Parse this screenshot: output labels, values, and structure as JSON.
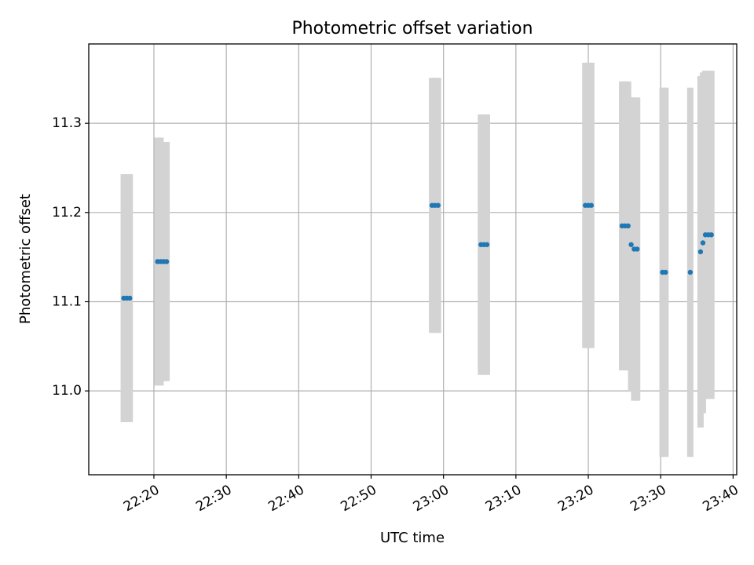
{
  "chart_data": {
    "type": "scatter",
    "title": "Photometric offset variation",
    "xlabel": "UTC time",
    "ylabel": "Photometric offset",
    "grid": true,
    "legend": "none",
    "xlim": [
      "22:11:00",
      "23:40:30"
    ],
    "ylim": [
      10.906,
      11.389
    ],
    "x_ticks": [
      "22:20",
      "22:30",
      "22:40",
      "22:50",
      "23:00",
      "23:10",
      "23:20",
      "23:30",
      "23:40"
    ],
    "y_ticks": [
      "11.0",
      "11.1",
      "11.2",
      "11.3"
    ],
    "y_tick_values": [
      11.0,
      11.1,
      11.2,
      11.3
    ],
    "colors": {
      "point": "#1f77b4",
      "errorbar": "#d3d3d3",
      "grid": "#b0b0b0"
    },
    "points": [
      {
        "time": "22:15:50",
        "value": 11.104,
        "error": 0.139
      },
      {
        "time": "22:16:15",
        "value": 11.104,
        "error": 0.139
      },
      {
        "time": "22:16:40",
        "value": 11.104,
        "error": 0.139
      },
      {
        "time": "22:20:30",
        "value": 11.145,
        "error": 0.139
      },
      {
        "time": "22:20:55",
        "value": 11.145,
        "error": 0.139
      },
      {
        "time": "22:21:20",
        "value": 11.145,
        "error": 0.134
      },
      {
        "time": "22:21:45",
        "value": 11.145,
        "error": 0.134
      },
      {
        "time": "22:58:25",
        "value": 11.208,
        "error": 0.143
      },
      {
        "time": "22:58:50",
        "value": 11.208,
        "error": 0.143
      },
      {
        "time": "22:59:15",
        "value": 11.208,
        "error": 0.143
      },
      {
        "time": "23:05:10",
        "value": 11.164,
        "error": 0.146
      },
      {
        "time": "23:05:35",
        "value": 11.164,
        "error": 0.146
      },
      {
        "time": "23:06:00",
        "value": 11.164,
        "error": 0.146
      },
      {
        "time": "23:19:35",
        "value": 11.208,
        "error": 0.16
      },
      {
        "time": "23:20:00",
        "value": 11.208,
        "error": 0.16
      },
      {
        "time": "23:20:25",
        "value": 11.208,
        "error": 0.16
      },
      {
        "time": "23:24:40",
        "value": 11.185,
        "error": 0.162
      },
      {
        "time": "23:25:05",
        "value": 11.185,
        "error": 0.162
      },
      {
        "time": "23:25:30",
        "value": 11.185,
        "error": 0.162
      },
      {
        "time": "23:25:55",
        "value": 11.164,
        "error": 0.165
      },
      {
        "time": "23:26:20",
        "value": 11.159,
        "error": 0.17
      },
      {
        "time": "23:26:45",
        "value": 11.159,
        "error": 0.17
      },
      {
        "time": "23:30:15",
        "value": 11.133,
        "error": 0.207
      },
      {
        "time": "23:30:40",
        "value": 11.133,
        "error": 0.207
      },
      {
        "time": "23:34:05",
        "value": 11.133,
        "error": 0.207
      },
      {
        "time": "23:35:30",
        "value": 11.156,
        "error": 0.197
      },
      {
        "time": "23:35:50",
        "value": 11.166,
        "error": 0.191
      },
      {
        "time": "23:36:10",
        "value": 11.175,
        "error": 0.184
      },
      {
        "time": "23:36:35",
        "value": 11.175,
        "error": 0.184
      },
      {
        "time": "23:37:00",
        "value": 11.175,
        "error": 0.184
      }
    ]
  }
}
